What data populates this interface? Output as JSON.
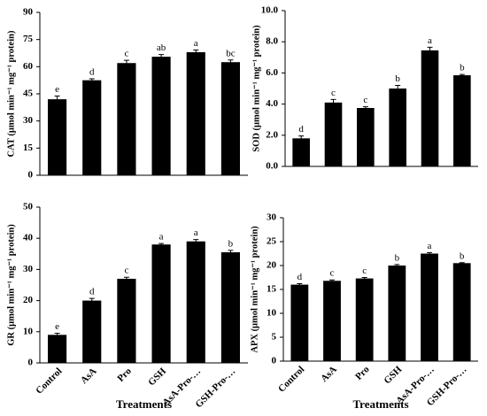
{
  "chart_data": [
    {
      "type": "bar",
      "ylabel": "CAT (μmol min⁻¹ mg⁻¹ protein)",
      "categories": [
        null,
        null,
        null,
        null,
        null,
        null
      ],
      "values": [
        42,
        52.5,
        62,
        65.5,
        68,
        62.5
      ],
      "errors": [
        1.8,
        0.8,
        1.5,
        1.2,
        1.2,
        1.2
      ],
      "letters": [
        "e",
        "d",
        "c",
        "ab",
        "a",
        "bc"
      ],
      "color": "#000000",
      "ylim": [
        0,
        90
      ],
      "yticks": [
        0,
        15,
        30,
        45,
        60,
        75,
        90
      ]
    },
    {
      "type": "bar",
      "ylabel": "SOD (μmol min⁻¹ mg⁻¹ protein)",
      "categories": [
        null,
        null,
        null,
        null,
        null,
        null
      ],
      "values": [
        1.8,
        4.1,
        3.75,
        5.0,
        7.45,
        5.85
      ],
      "errors": [
        0.15,
        0.2,
        0.08,
        0.2,
        0.2,
        0.05
      ],
      "letters": [
        "d",
        "c",
        "c",
        "b",
        "a",
        "b"
      ],
      "color": "#000000",
      "ylim": [
        0,
        10
      ],
      "yticks": [
        {
          "value": 0,
          "label": "0.0"
        },
        {
          "value": 2,
          "label": "2.0"
        },
        {
          "value": 4,
          "label": "4.0"
        },
        {
          "value": 6,
          "label": "6.0"
        },
        {
          "value": 8,
          "label": "8.0"
        },
        {
          "value": 10,
          "label": "10.0"
        }
      ]
    },
    {
      "type": "bar",
      "ylabel": "GR (μmol min⁻¹ mg⁻¹ protein)",
      "xlabel": "Treatments",
      "categories": [
        "Control",
        "AsA",
        "Pro",
        "GSH",
        "AsA-Pro-…",
        "GSH-Pro-…"
      ],
      "values": [
        9,
        20,
        27,
        38,
        39,
        35.5
      ],
      "errors": [
        0.5,
        0.7,
        0.5,
        0.3,
        0.6,
        0.6
      ],
      "letters": [
        "e",
        "d",
        "c",
        "a",
        "a",
        "b"
      ],
      "color": "#000000",
      "ylim": [
        0,
        50
      ],
      "yticks": [
        0,
        10,
        20,
        30,
        40,
        50
      ]
    },
    {
      "type": "bar",
      "ylabel": "APX (μmol min⁻¹ mg⁻¹ protein)",
      "xlabel": "Treatments",
      "categories": [
        "Control",
        "AsA",
        "Pro",
        "GSH",
        "AsA-Pro-…",
        "GSH-Pro-…"
      ],
      "values": [
        16,
        16.8,
        17.3,
        20,
        22.5,
        20.5
      ],
      "errors": [
        0.2,
        0.2,
        0.2,
        0.2,
        0.2,
        0.1
      ],
      "letters": [
        "d",
        "c",
        "c",
        "b",
        "a",
        "b"
      ],
      "color": "#000000",
      "ylim": [
        0,
        30
      ],
      "yticks": [
        0,
        5,
        10,
        15,
        20,
        25,
        30
      ]
    }
  ]
}
